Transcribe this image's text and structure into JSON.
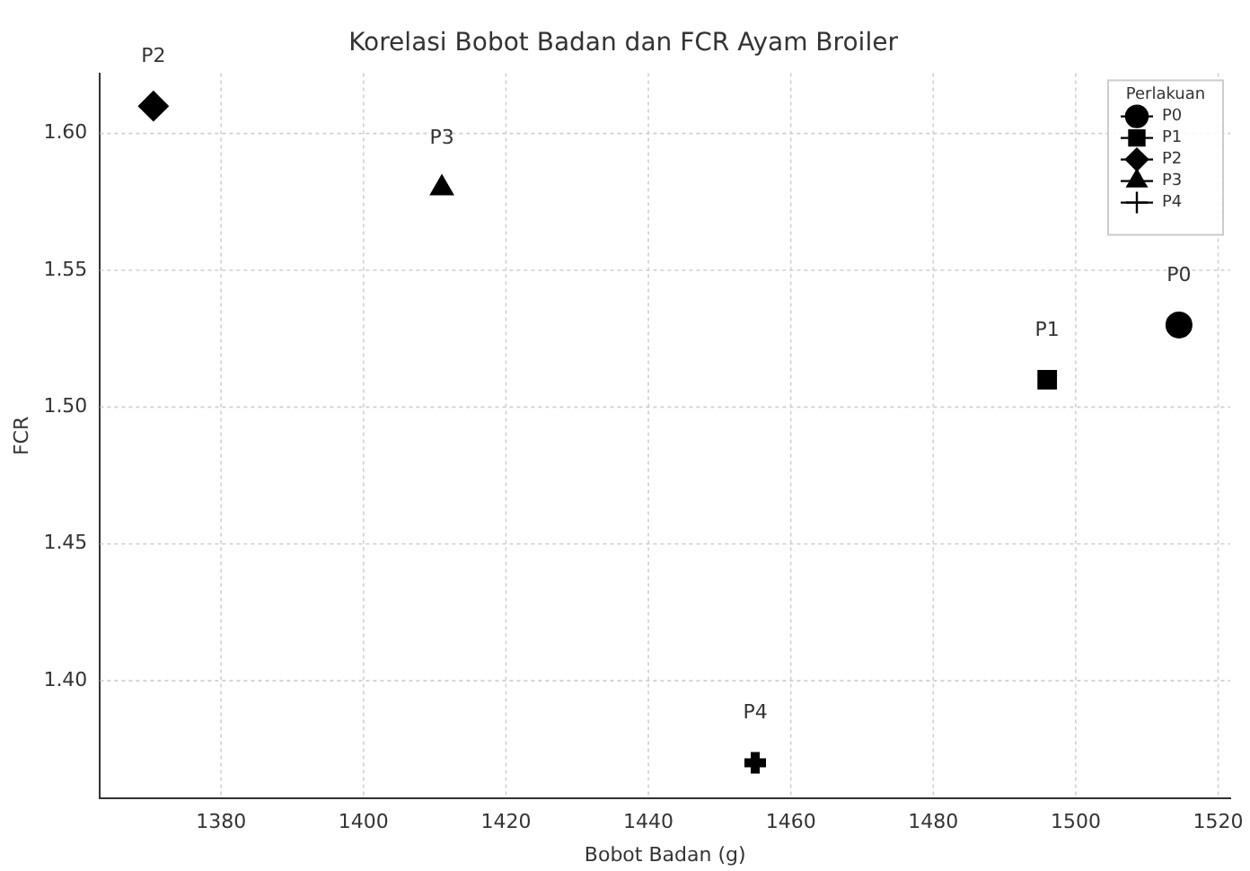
{
  "chart_data": {
    "type": "scatter",
    "title": "Korelasi Bobot Badan dan FCR Ayam Broiler",
    "xlabel": "Bobot Badan (g)",
    "ylabel": "FCR",
    "legend_title": "Perlakuan",
    "legend": "top right",
    "grid": true,
    "xlim": [
      1363,
      1521.7
    ],
    "xticks": [
      1380,
      1400,
      1420,
      1440,
      1460,
      1480,
      1500,
      1520
    ],
    "ylim": [
      1.357,
      1.622
    ],
    "yticks": [
      {
        "value": 1.4,
        "label": "1.40"
      },
      {
        "value": 1.45,
        "label": "1.45"
      },
      {
        "value": 1.5,
        "label": "1.50"
      },
      {
        "value": 1.55,
        "label": "1.55"
      },
      {
        "value": 1.6,
        "label": "1.60"
      }
    ],
    "series": [
      {
        "name": "P0",
        "color": "#000000",
        "marker": "circle",
        "x": [
          1514.5
        ],
        "values": [
          1.53
        ]
      },
      {
        "name": "P1",
        "color": "#000000",
        "marker": "square",
        "x": [
          1496
        ],
        "values": [
          1.51
        ]
      },
      {
        "name": "P2",
        "color": "#000000",
        "marker": "diamond",
        "x": [
          1370.5
        ],
        "values": [
          1.61
        ]
      },
      {
        "name": "P3",
        "color": "#000000",
        "marker": "triangle",
        "x": [
          1411
        ],
        "values": [
          1.58
        ]
      },
      {
        "name": "P4",
        "color": "#000000",
        "marker": "cross",
        "x": [
          1455
        ],
        "values": [
          1.37
        ]
      }
    ]
  }
}
